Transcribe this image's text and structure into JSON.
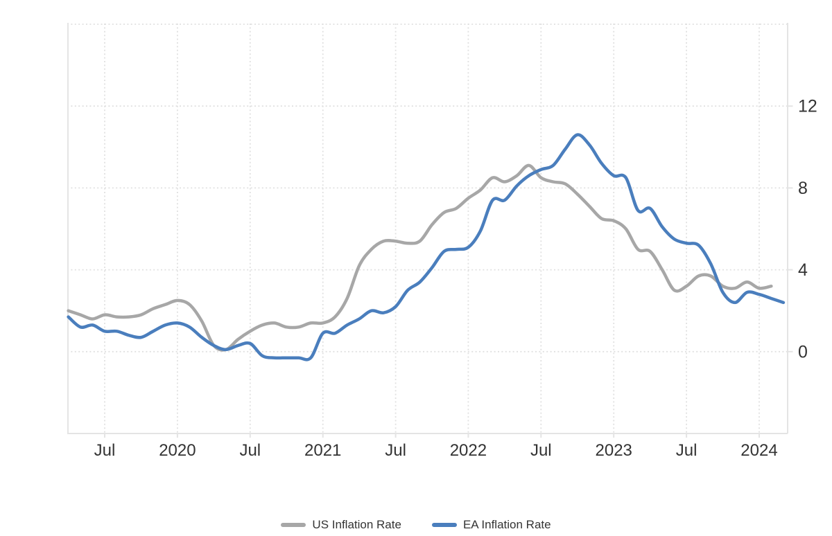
{
  "chart_data": {
    "type": "line",
    "title": "",
    "xlabel": "",
    "ylabel": "",
    "x_unit": "month",
    "x_start": "2019-04",
    "ylim": [
      -4,
      16
    ],
    "grid": "dotted",
    "y_axis_side": "right",
    "legend_position": "bottom",
    "line_style": "smooth-spline",
    "series": [
      {
        "name": "US Inflation Rate",
        "color": "#a7a7a7",
        "start_month": "2019-04",
        "end_month": "2024-02",
        "values": [
          2.0,
          1.8,
          1.6,
          1.8,
          1.7,
          1.7,
          1.8,
          2.1,
          2.3,
          2.5,
          2.3,
          1.5,
          0.3,
          0.1,
          0.6,
          1.0,
          1.3,
          1.4,
          1.2,
          1.2,
          1.4,
          1.4,
          1.7,
          2.6,
          4.2,
          5.0,
          5.4,
          5.4,
          5.3,
          5.4,
          6.2,
          6.8,
          7.0,
          7.5,
          7.9,
          8.5,
          8.3,
          8.6,
          9.1,
          8.5,
          8.3,
          8.2,
          7.7,
          7.1,
          6.5,
          6.4,
          6.0,
          5.0,
          4.9,
          4.0,
          3.0,
          3.2,
          3.7,
          3.7,
          3.2,
          3.1,
          3.4,
          3.1,
          3.2
        ]
      },
      {
        "name": "EA Inflation Rate",
        "color": "#4a7ebd",
        "start_month": "2019-04",
        "end_month": "2024-03",
        "values": [
          1.7,
          1.2,
          1.3,
          1.0,
          1.0,
          0.8,
          0.7,
          1.0,
          1.3,
          1.4,
          1.2,
          0.7,
          0.3,
          0.1,
          0.3,
          0.4,
          -0.2,
          -0.3,
          -0.3,
          -0.3,
          -0.3,
          0.9,
          0.9,
          1.3,
          1.6,
          2.0,
          1.9,
          2.2,
          3.0,
          3.4,
          4.1,
          4.9,
          5.0,
          5.1,
          5.9,
          7.4,
          7.4,
          8.1,
          8.6,
          8.9,
          9.1,
          9.9,
          10.6,
          10.1,
          9.2,
          8.6,
          8.5,
          6.9,
          7.0,
          6.1,
          5.5,
          5.3,
          5.2,
          4.3,
          2.9,
          2.4,
          2.9,
          2.8,
          2.6,
          2.4
        ]
      }
    ],
    "x_tick_labels": [
      {
        "label": "Jul",
        "month_index": 3
      },
      {
        "label": "2020",
        "month_index": 9
      },
      {
        "label": "Jul",
        "month_index": 15
      },
      {
        "label": "2021",
        "month_index": 21
      },
      {
        "label": "Jul",
        "month_index": 27
      },
      {
        "label": "2022",
        "month_index": 33
      },
      {
        "label": "Jul",
        "month_index": 39
      },
      {
        "label": "2023",
        "month_index": 45
      },
      {
        "label": "Jul",
        "month_index": 51
      },
      {
        "label": "2024",
        "month_index": 57
      }
    ],
    "y_tick_labels": [
      {
        "label": "0",
        "value": 0
      },
      {
        "label": "4",
        "value": 4
      },
      {
        "label": "8",
        "value": 8
      },
      {
        "label": "12",
        "value": 12
      }
    ],
    "grid_values": [
      0,
      4,
      8,
      12,
      16
    ],
    "colors": {
      "grid": "#e0e0e0",
      "axis": "#e4e4e4",
      "tick_text": "#333333",
      "background": "#ffffff"
    }
  }
}
